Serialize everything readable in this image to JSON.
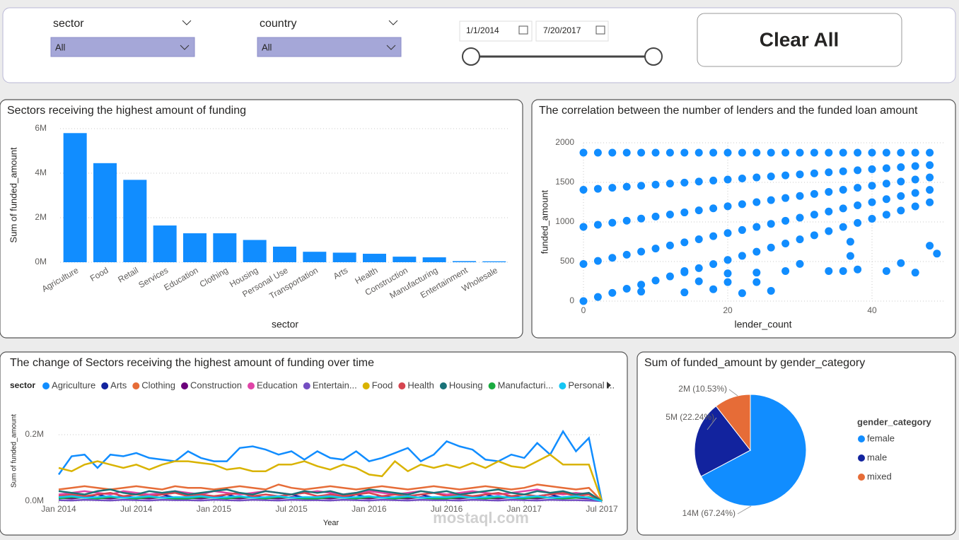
{
  "filters": {
    "sector": {
      "label": "sector",
      "value": "All"
    },
    "country": {
      "label": "country",
      "value": "All"
    },
    "date_range": {
      "start": "1/1/2014",
      "end": "7/20/2017"
    },
    "clear_button": "Clear All"
  },
  "watermark": "mostaql.com",
  "chart_data": [
    {
      "type": "bar",
      "title": "Sectors receiving the highest amount of funding",
      "x_label": "sector",
      "y_label": "Sum of funded_amount",
      "color": "#118dff",
      "grid": true,
      "categories": [
        "Agriculture",
        "Food",
        "Retail",
        "Services",
        "Education",
        "Clothing",
        "Housing",
        "Personal Use",
        "Transportation",
        "Arts",
        "Health",
        "Construction",
        "Manufacturing",
        "Entertainment",
        "Wholesale"
      ],
      "values": [
        5.8,
        4.45,
        3.7,
        1.65,
        1.3,
        1.3,
        1.0,
        0.7,
        0.47,
        0.43,
        0.38,
        0.25,
        0.22,
        0.05,
        0.04
      ],
      "ylim": [
        0,
        6
      ],
      "yticks": [
        {
          "value": 0,
          "label": "0M"
        },
        {
          "value": 2,
          "label": "2M"
        },
        {
          "value": 4,
          "label": "4M"
        },
        {
          "value": 6,
          "label": "6M"
        }
      ]
    },
    {
      "type": "scatter",
      "title": "The correlation between the number of lenders and the funded loan amount",
      "x_label": "lender_count",
      "y_label": "funded_amount",
      "color": "#118dff",
      "grid": true,
      "x": [
        0,
        0,
        0,
        0,
        0,
        2,
        2,
        2,
        2,
        2,
        4,
        4,
        4,
        4,
        4,
        6,
        6,
        6,
        6,
        6,
        8,
        8,
        8,
        8,
        8,
        10,
        10,
        10,
        10,
        10,
        12,
        12,
        12,
        12,
        12,
        14,
        14,
        14,
        14,
        14,
        16,
        16,
        16,
        16,
        16,
        18,
        18,
        18,
        18,
        18,
        20,
        20,
        20,
        20,
        20,
        22,
        22,
        22,
        22,
        22,
        24,
        24,
        24,
        24,
        24,
        26,
        26,
        26,
        26,
        26,
        28,
        28,
        28,
        28,
        28,
        30,
        30,
        30,
        30,
        30,
        32,
        32,
        32,
        32,
        32,
        34,
        34,
        34,
        34,
        34,
        36,
        36,
        36,
        36,
        36,
        38,
        38,
        38,
        38,
        38,
        40,
        40,
        40,
        40,
        40,
        42,
        42,
        42,
        42,
        42,
        44,
        44,
        44,
        44,
        44,
        46,
        46,
        46,
        46,
        46,
        48,
        48,
        48,
        48,
        48,
        14,
        20,
        24,
        28,
        30,
        34,
        36,
        38,
        42,
        44,
        46,
        48,
        49,
        37,
        37,
        8,
        14,
        18,
        22,
        26,
        16,
        20,
        24
      ],
      "y": [
        0,
        469,
        938,
        1406,
        1875,
        52,
        508,
        964,
        1419,
        1875,
        104,
        547,
        990,
        1432,
        1875,
        156,
        586,
        1016,
        1445,
        1875,
        208,
        625,
        1042,
        1458,
        1875,
        260,
        664,
        1068,
        1471,
        1875,
        312,
        703,
        1094,
        1484,
        1875,
        364,
        742,
        1120,
        1497,
        1875,
        416,
        781,
        1146,
        1510,
        1875,
        468,
        820,
        1172,
        1523,
        1875,
        520,
        859,
        1198,
        1536,
        1875,
        572,
        898,
        1224,
        1549,
        1875,
        624,
        937,
        1250,
        1562,
        1875,
        676,
        976,
        1276,
        1575,
        1875,
        728,
        1015,
        1302,
        1588,
        1875,
        780,
        1054,
        1328,
        1601,
        1875,
        832,
        1093,
        1354,
        1614,
        1875,
        884,
        1132,
        1380,
        1627,
        1875,
        936,
        1171,
        1406,
        1640,
        1875,
        988,
        1210,
        1432,
        1653,
        1875,
        1040,
        1249,
        1458,
        1666,
        1875,
        1092,
        1288,
        1484,
        1679,
        1875,
        1144,
        1327,
        1510,
        1692,
        1875,
        1196,
        1366,
        1536,
        1705,
        1875,
        1248,
        1405,
        1562,
        1718,
        1875,
        380,
        350,
        360,
        380,
        470,
        380,
        380,
        400,
        380,
        480,
        360,
        700,
        600,
        750,
        570,
        120,
        110,
        150,
        100,
        130,
        250,
        240,
        240
      ],
      "xlim": [
        0,
        50
      ],
      "xticks": [
        0,
        20,
        40
      ],
      "ylim": [
        0,
        2000
      ],
      "yticks": [
        0,
        500,
        1000,
        1500,
        2000
      ]
    },
    {
      "type": "line",
      "title": "The change of Sectors receiving the highest amount of funding over time",
      "legend_title": "sector",
      "x_label": "Year",
      "y_label": "Sum of funded_amount",
      "grid": true,
      "x": [
        "2014-01",
        "2014-02",
        "2014-03",
        "2014-04",
        "2014-05",
        "2014-06",
        "2014-07",
        "2014-08",
        "2014-09",
        "2014-10",
        "2014-11",
        "2014-12",
        "2015-01",
        "2015-02",
        "2015-03",
        "2015-04",
        "2015-05",
        "2015-06",
        "2015-07",
        "2015-08",
        "2015-09",
        "2015-10",
        "2015-11",
        "2015-12",
        "2016-01",
        "2016-02",
        "2016-03",
        "2016-04",
        "2016-05",
        "2016-06",
        "2016-07",
        "2016-08",
        "2016-09",
        "2016-10",
        "2016-11",
        "2016-12",
        "2017-01",
        "2017-02",
        "2017-03",
        "2017-04",
        "2017-05",
        "2017-06",
        "2017-07"
      ],
      "xticks": [
        {
          "value": "2014-01",
          "label": "Jan 2014"
        },
        {
          "value": "2014-07",
          "label": "Jul 2014"
        },
        {
          "value": "2015-01",
          "label": "Jan 2015"
        },
        {
          "value": "2015-07",
          "label": "Jul 2015"
        },
        {
          "value": "2016-01",
          "label": "Jan 2016"
        },
        {
          "value": "2016-07",
          "label": "Jul 2016"
        },
        {
          "value": "2017-01",
          "label": "Jan 2017"
        },
        {
          "value": "2017-07",
          "label": "Jul 2017"
        }
      ],
      "ylim": [
        0,
        0.3
      ],
      "yticks": [
        {
          "value": 0,
          "label": "0.0M"
        },
        {
          "value": 0.2,
          "label": "0.2M"
        }
      ],
      "series": [
        {
          "name": "Agriculture",
          "color": "#118dff",
          "values": [
            0.08,
            0.135,
            0.14,
            0.1,
            0.14,
            0.135,
            0.145,
            0.13,
            0.125,
            0.12,
            0.15,
            0.13,
            0.12,
            0.12,
            0.16,
            0.165,
            0.155,
            0.14,
            0.15,
            0.125,
            0.15,
            0.13,
            0.125,
            0.15,
            0.12,
            0.13,
            0.145,
            0.16,
            0.12,
            0.14,
            0.18,
            0.165,
            0.155,
            0.125,
            0.12,
            0.14,
            0.13,
            0.175,
            0.14,
            0.21,
            0.15,
            0.19,
            0
          ]
        },
        {
          "name": "Arts",
          "color": "#12239e",
          "values": [
            0.01,
            0.015,
            0.01,
            0.02,
            0.01,
            0.015,
            0.01,
            0.015,
            0.02,
            0.01,
            0.01,
            0.015,
            0.01,
            0.02,
            0.01,
            0.015,
            0.01,
            0.015,
            0.02,
            0.01,
            0.01,
            0.015,
            0.01,
            0.02,
            0.01,
            0.015,
            0.01,
            0.015,
            0.02,
            0.01,
            0.01,
            0.015,
            0.01,
            0.02,
            0.01,
            0.015,
            0.01,
            0.015,
            0.02,
            0.01,
            0.015,
            0.01,
            0
          ]
        },
        {
          "name": "Clothing",
          "color": "#e66c37",
          "values": [
            0.035,
            0.04,
            0.045,
            0.04,
            0.035,
            0.04,
            0.045,
            0.04,
            0.035,
            0.045,
            0.04,
            0.04,
            0.035,
            0.04,
            0.045,
            0.04,
            0.035,
            0.05,
            0.04,
            0.035,
            0.04,
            0.045,
            0.04,
            0.035,
            0.04,
            0.045,
            0.04,
            0.035,
            0.04,
            0.045,
            0.04,
            0.035,
            0.04,
            0.045,
            0.04,
            0.035,
            0.04,
            0.05,
            0.045,
            0.04,
            0.035,
            0.04,
            0
          ]
        },
        {
          "name": "Construction",
          "color": "#6b007b",
          "values": [
            0.01,
            0.008,
            0.012,
            0.01,
            0.008,
            0.012,
            0.01,
            0.008,
            0.012,
            0.01,
            0.01,
            0.008,
            0.012,
            0.01,
            0.008,
            0.012,
            0.01,
            0.008,
            0.012,
            0.01,
            0.01,
            0.008,
            0.012,
            0.01,
            0.008,
            0.012,
            0.01,
            0.008,
            0.012,
            0.01,
            0.01,
            0.008,
            0.012,
            0.01,
            0.008,
            0.012,
            0.01,
            0.008,
            0.012,
            0.01,
            0.01,
            0.008,
            0
          ]
        },
        {
          "name": "Education",
          "color": "#e044a7",
          "values": [
            0.02,
            0.025,
            0.03,
            0.025,
            0.02,
            0.03,
            0.025,
            0.02,
            0.025,
            0.03,
            0.025,
            0.02,
            0.03,
            0.025,
            0.02,
            0.025,
            0.03,
            0.025,
            0.02,
            0.025,
            0.03,
            0.025,
            0.02,
            0.025,
            0.03,
            0.025,
            0.02,
            0.025,
            0.03,
            0.025,
            0.02,
            0.025,
            0.03,
            0.025,
            0.02,
            0.025,
            0.03,
            0.035,
            0.025,
            0.02,
            0.025,
            0.02,
            0
          ]
        },
        {
          "name": "Entertain...",
          "color": "#744ec2",
          "values": [
            0.003,
            0.002,
            0.004,
            0.003,
            0.002,
            0.004,
            0.003,
            0.002,
            0.004,
            0.003,
            0.003,
            0.002,
            0.004,
            0.003,
            0.002,
            0.004,
            0.003,
            0.002,
            0.004,
            0.003,
            0.003,
            0.002,
            0.004,
            0.003,
            0.002,
            0.004,
            0.003,
            0.002,
            0.004,
            0.003,
            0.003,
            0.002,
            0.004,
            0.003,
            0.002,
            0.004,
            0.003,
            0.002,
            0.004,
            0.003,
            0.003,
            0.002,
            0
          ]
        },
        {
          "name": "Food",
          "color": "#d9b300",
          "values": [
            0.1,
            0.09,
            0.11,
            0.12,
            0.11,
            0.1,
            0.11,
            0.095,
            0.11,
            0.12,
            0.12,
            0.115,
            0.11,
            0.095,
            0.1,
            0.09,
            0.09,
            0.11,
            0.11,
            0.12,
            0.105,
            0.095,
            0.11,
            0.1,
            0.08,
            0.075,
            0.12,
            0.09,
            0.11,
            0.1,
            0.11,
            0.1,
            0.115,
            0.1,
            0.12,
            0.105,
            0.1,
            0.12,
            0.14,
            0.11,
            0.11,
            0.11,
            0
          ]
        },
        {
          "name": "Health",
          "color": "#d64550",
          "values": [
            0.015,
            0.02,
            0.015,
            0.02,
            0.025,
            0.015,
            0.02,
            0.015,
            0.02,
            0.025,
            0.015,
            0.02,
            0.015,
            0.02,
            0.025,
            0.015,
            0.02,
            0.015,
            0.02,
            0.025,
            0.015,
            0.02,
            0.015,
            0.02,
            0.025,
            0.015,
            0.02,
            0.015,
            0.02,
            0.025,
            0.015,
            0.02,
            0.015,
            0.02,
            0.025,
            0.015,
            0.02,
            0.015,
            0.02,
            0.025,
            0.015,
            0.02,
            0
          ]
        },
        {
          "name": "Housing",
          "color": "#197278",
          "values": [
            0.03,
            0.025,
            0.02,
            0.03,
            0.035,
            0.025,
            0.02,
            0.03,
            0.025,
            0.03,
            0.02,
            0.025,
            0.03,
            0.035,
            0.025,
            0.02,
            0.03,
            0.025,
            0.02,
            0.03,
            0.025,
            0.03,
            0.02,
            0.025,
            0.035,
            0.03,
            0.025,
            0.02,
            0.03,
            0.025,
            0.03,
            0.02,
            0.025,
            0.03,
            0.035,
            0.025,
            0.02,
            0.03,
            0.025,
            0.03,
            0.02,
            0.025,
            0
          ]
        },
        {
          "name": "Manufacturi...",
          "color": "#1aab40",
          "values": [
            0.008,
            0.012,
            0.01,
            0.008,
            0.012,
            0.01,
            0.008,
            0.012,
            0.01,
            0.008,
            0.008,
            0.012,
            0.01,
            0.008,
            0.012,
            0.01,
            0.008,
            0.012,
            0.01,
            0.008,
            0.008,
            0.012,
            0.01,
            0.008,
            0.012,
            0.01,
            0.008,
            0.012,
            0.01,
            0.008,
            0.008,
            0.012,
            0.01,
            0.008,
            0.012,
            0.01,
            0.008,
            0.012,
            0.01,
            0.008,
            0.01,
            0.012,
            0
          ]
        },
        {
          "name": "Personal ...",
          "color": "#15c6f4",
          "values": [
            0.012,
            0.015,
            0.01,
            0.012,
            0.015,
            0.01,
            0.012,
            0.015,
            0.01,
            0.012,
            0.012,
            0.015,
            0.01,
            0.012,
            0.015,
            0.01,
            0.012,
            0.015,
            0.01,
            0.012,
            0.012,
            0.015,
            0.01,
            0.012,
            0.015,
            0.01,
            0.012,
            0.015,
            0.01,
            0.012,
            0.012,
            0.015,
            0.01,
            0.012,
            0.015,
            0.01,
            0.012,
            0.015,
            0.01,
            0.012,
            0.015,
            0.01,
            0
          ]
        }
      ]
    },
    {
      "type": "pie",
      "title": "Sum of funded_amount by gender_category",
      "legend_title": "gender_category",
      "legend": "right",
      "categories": [
        "female",
        "male",
        "mixed"
      ],
      "values": [
        67.24,
        22.24,
        10.53
      ],
      "value_labels": [
        "14M (67.24%)",
        "5M (22.24%)",
        "2M (10.53%)"
      ],
      "colors": [
        "#118dff",
        "#12239e",
        "#e66c37"
      ]
    }
  ]
}
